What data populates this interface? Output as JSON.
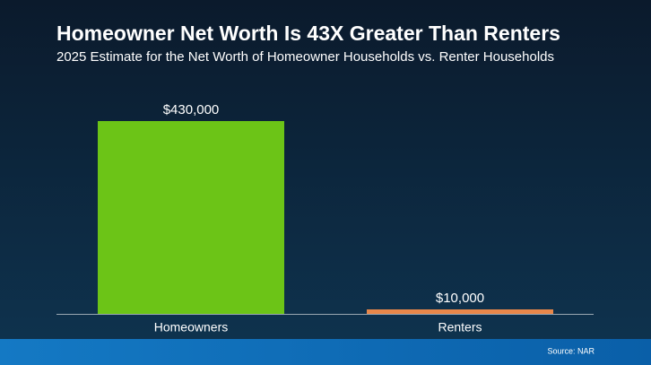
{
  "chart_data": {
    "type": "bar",
    "title": "Homeowner Net Worth Is 43X Greater Than Renters",
    "subtitle": "2025 Estimate for the Net Worth of Homeowner Households vs. Renter Households",
    "categories": [
      "Homeowners",
      "Renters"
    ],
    "values": [
      430000,
      10000
    ],
    "value_labels": [
      "$430,000",
      "$10,000"
    ],
    "colors": [
      "#6cc417",
      "#e8874a"
    ],
    "source": "Source: NAR"
  }
}
